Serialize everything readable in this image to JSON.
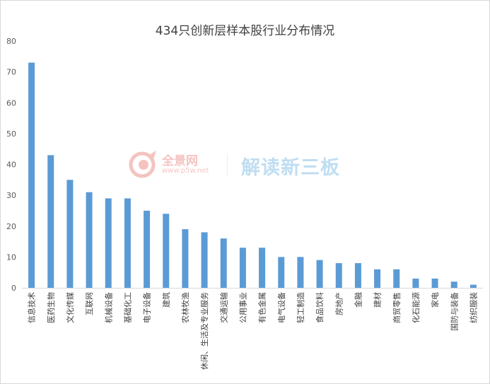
{
  "chart_data": {
    "type": "bar",
    "title": "434只创新层样本股行业分布情况",
    "categories": [
      "信息技术",
      "医药生物",
      "文化传媒",
      "互联网",
      "机械设备",
      "基础化工",
      "电子设备",
      "建筑",
      "农林牧渔",
      "休闲、生活及专业服务",
      "交通运输",
      "公用事业",
      "有色金属",
      "电气设备",
      "轻工制造",
      "食品饮料",
      "房地产",
      "金融",
      "建材",
      "商贸零售",
      "化石能源",
      "家电",
      "国防与装备",
      "纺织服装"
    ],
    "values": [
      73,
      43,
      35,
      31,
      29,
      29,
      25,
      24,
      19,
      18,
      16,
      13,
      13,
      10,
      10,
      9,
      8,
      8,
      6,
      6,
      3,
      3,
      2,
      1
    ],
    "ylim": [
      0,
      80
    ],
    "yticks": [
      0,
      10,
      20,
      30,
      40,
      50,
      60,
      70,
      80
    ],
    "bar_color": "#5b9bd5",
    "grid": false,
    "legend": "none"
  },
  "watermark": {
    "brand": "全景网",
    "url": "www.p5w.net",
    "slogan": "解读新三板",
    "icon": "p5w-logo-icon"
  }
}
